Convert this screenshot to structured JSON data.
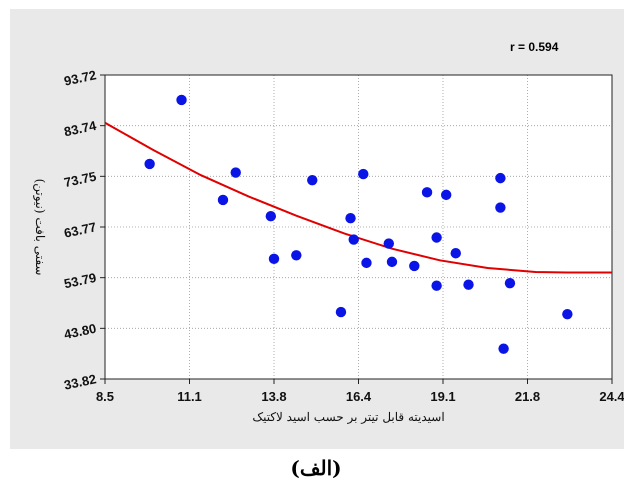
{
  "caption": "(الف)",
  "chart_data": {
    "type": "scatter",
    "annotation": "r = 0.594",
    "xlabel": "اسیدیته قابل تیتر بر حسب اسید لاکتیک",
    "ylabel": "سفتی بافت (نیوتن)",
    "xlim": [
      8.5,
      24.4
    ],
    "ylim": [
      33.82,
      93.72
    ],
    "x_ticks": [
      "8.5",
      "11.1",
      "13.8",
      "16.4",
      "19.1",
      "21.8",
      "24.4"
    ],
    "y_ticks": [
      "93.72",
      "83.74",
      "73.75",
      "63.77",
      "53.79",
      "43.80",
      "33.82"
    ],
    "grid": true,
    "marker_color": "#0a14e6",
    "fit_color": "#e00000",
    "points": [
      {
        "x": 9.9,
        "y": 76.2
      },
      {
        "x": 10.9,
        "y": 88.8
      },
      {
        "x": 12.2,
        "y": 69.1
      },
      {
        "x": 12.6,
        "y": 74.5
      },
      {
        "x": 13.7,
        "y": 65.9
      },
      {
        "x": 13.8,
        "y": 57.5
      },
      {
        "x": 14.5,
        "y": 58.2
      },
      {
        "x": 15.0,
        "y": 73.0
      },
      {
        "x": 15.9,
        "y": 47.0
      },
      {
        "x": 16.2,
        "y": 65.5
      },
      {
        "x": 16.3,
        "y": 61.3
      },
      {
        "x": 16.6,
        "y": 74.2
      },
      {
        "x": 16.7,
        "y": 56.7
      },
      {
        "x": 17.4,
        "y": 60.5
      },
      {
        "x": 17.5,
        "y": 56.9
      },
      {
        "x": 18.2,
        "y": 56.1
      },
      {
        "x": 18.6,
        "y": 70.6
      },
      {
        "x": 18.9,
        "y": 61.7
      },
      {
        "x": 18.9,
        "y": 52.2
      },
      {
        "x": 19.2,
        "y": 70.1
      },
      {
        "x": 19.5,
        "y": 58.6
      },
      {
        "x": 19.9,
        "y": 52.4
      },
      {
        "x": 20.9,
        "y": 73.4
      },
      {
        "x": 20.9,
        "y": 67.6
      },
      {
        "x": 21.0,
        "y": 39.8
      },
      {
        "x": 21.2,
        "y": 52.7
      },
      {
        "x": 23.0,
        "y": 46.6
      }
    ],
    "fit_curve": {
      "x": [
        8.5,
        10.0,
        11.5,
        13.0,
        14.5,
        16.0,
        17.5,
        19.0,
        20.5,
        22.0,
        23.0,
        24.4
      ],
      "y": [
        84.3,
        79.0,
        74.0,
        69.8,
        66.0,
        62.5,
        59.5,
        57.2,
        55.7,
        54.9,
        54.8,
        54.8
      ]
    }
  }
}
